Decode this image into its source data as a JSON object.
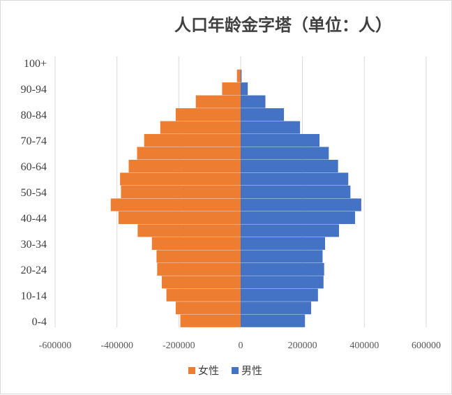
{
  "chart_data": {
    "type": "bar",
    "orientation": "horizontal",
    "title": "人口年龄金字塔（单位：人）",
    "categories": [
      "0-4",
      "5-9",
      "10-14",
      "15-19",
      "20-24",
      "25-29",
      "30-34",
      "35-39",
      "40-44",
      "45-49",
      "50-54",
      "55-59",
      "60-64",
      "65-69",
      "70-74",
      "75-79",
      "80-84",
      "85-89",
      "90-94",
      "95-99",
      "100+"
    ],
    "category_labels": [
      "0-4",
      "",
      "10-14",
      "",
      "20-24",
      "",
      "30-34",
      "",
      "40-44",
      "",
      "50-54",
      "",
      "60-64",
      "",
      "70-74",
      "",
      "80-84",
      "",
      "90-94",
      "",
      "100+"
    ],
    "series": [
      {
        "name": "女性",
        "color": "#ED7D31",
        "values": [
          -195000,
          -210000,
          -240000,
          -255000,
          -270000,
          -272000,
          -287000,
          -333000,
          -395000,
          -420000,
          -387000,
          -390000,
          -362000,
          -335000,
          -312000,
          -260000,
          -210000,
          -145000,
          -60000,
          -12000,
          0
        ]
      },
      {
        "name": "男性",
        "color": "#4472C4",
        "values": [
          208000,
          228000,
          250000,
          268000,
          270000,
          265000,
          273000,
          318000,
          370000,
          390000,
          355000,
          348000,
          315000,
          285000,
          255000,
          192000,
          140000,
          80000,
          23000,
          3000,
          0
        ]
      }
    ],
    "xlim": [
      -600000,
      600000
    ],
    "xticks": [
      -600000,
      -400000,
      -200000,
      0,
      200000,
      400000,
      600000
    ],
    "xtick_labels": [
      "-600000",
      "-400000",
      "-200000",
      "0",
      "200000",
      "400000",
      "600000"
    ],
    "grid": true,
    "legend_position": "bottom",
    "legend": [
      "女性",
      "男性"
    ]
  }
}
